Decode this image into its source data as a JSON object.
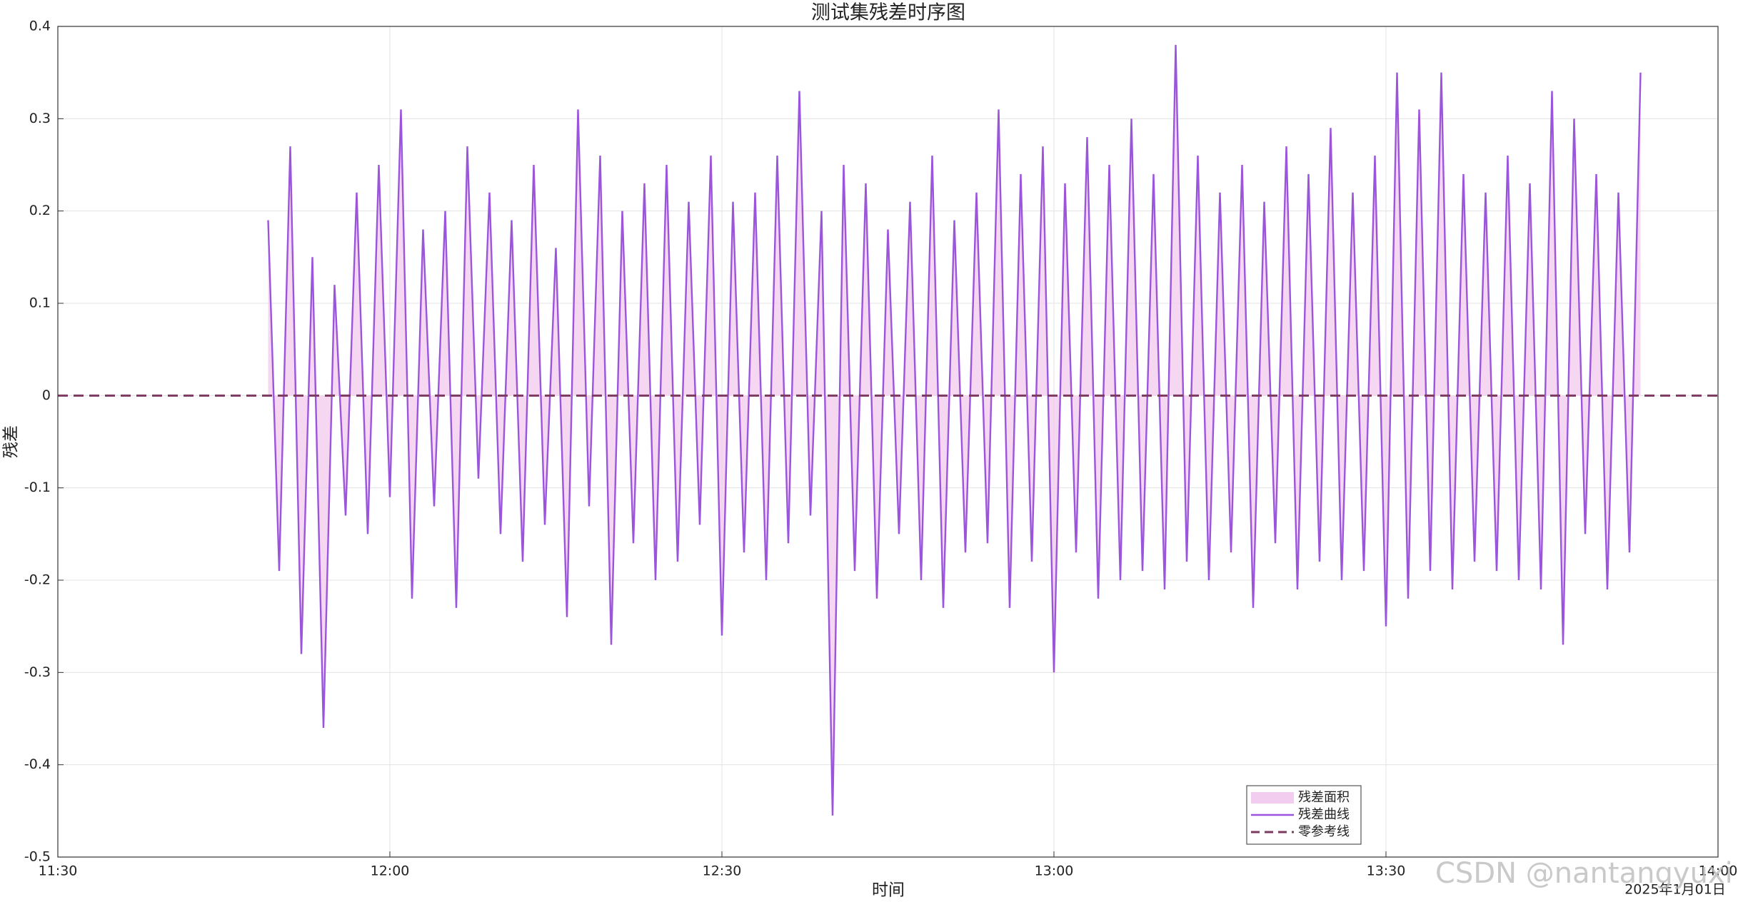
{
  "chart_data": {
    "type": "line",
    "title": "测试集残差时序图",
    "xlabel": "时间",
    "ylabel": "残差",
    "date_label": "2025年1月01日",
    "watermark": "CSDN @nantangyuxi",
    "x": [
      "11:49",
      "11:50",
      "11:51",
      "11:52",
      "11:53",
      "11:54",
      "11:55",
      "11:56",
      "11:57",
      "11:58",
      "11:59",
      "12:00",
      "12:01",
      "12:02",
      "12:03",
      "12:04",
      "12:05",
      "12:06",
      "12:07",
      "12:08",
      "12:09",
      "12:10",
      "12:11",
      "12:12",
      "12:13",
      "12:14",
      "12:15",
      "12:16",
      "12:17",
      "12:18",
      "12:19",
      "12:20",
      "12:21",
      "12:22",
      "12:23",
      "12:24",
      "12:25",
      "12:26",
      "12:27",
      "12:28",
      "12:29",
      "12:30",
      "12:31",
      "12:32",
      "12:33",
      "12:34",
      "12:35",
      "12:36",
      "12:37",
      "12:38",
      "12:39",
      "12:40",
      "12:41",
      "12:42",
      "12:43",
      "12:44",
      "12:45",
      "12:46",
      "12:47",
      "12:48",
      "12:49",
      "12:50",
      "12:51",
      "12:52",
      "12:53",
      "12:54",
      "12:55",
      "12:56",
      "12:57",
      "12:58",
      "12:59",
      "13:00",
      "13:01",
      "13:02",
      "13:03",
      "13:04",
      "13:05",
      "13:06",
      "13:07",
      "13:08",
      "13:09",
      "13:10",
      "13:11",
      "13:12",
      "13:13",
      "13:14",
      "13:15",
      "13:16",
      "13:17",
      "13:18",
      "13:19",
      "13:20",
      "13:21",
      "13:22",
      "13:23",
      "13:24",
      "13:25",
      "13:26",
      "13:27",
      "13:28",
      "13:29",
      "13:30",
      "13:31",
      "13:32",
      "13:33",
      "13:34",
      "13:35",
      "13:36",
      "13:37",
      "13:38",
      "13:39",
      "13:40",
      "13:41",
      "13:42",
      "13:43",
      "13:44",
      "13:45",
      "13:46",
      "13:47",
      "13:48",
      "13:49",
      "13:50",
      "13:51",
      "13:52",
      "13:53"
    ],
    "series": [
      {
        "name": "残差面积",
        "kind": "area",
        "color": "#f3cdef"
      },
      {
        "name": "残差曲线",
        "kind": "line",
        "color": "#9b55dc",
        "values": [
          0.19,
          -0.19,
          0.27,
          -0.28,
          0.15,
          -0.36,
          0.12,
          -0.13,
          0.22,
          -0.15,
          0.25,
          -0.11,
          0.31,
          -0.22,
          0.18,
          -0.12,
          0.2,
          -0.23,
          0.27,
          -0.09,
          0.22,
          -0.15,
          0.19,
          -0.18,
          0.25,
          -0.14,
          0.16,
          -0.24,
          0.31,
          -0.12,
          0.26,
          -0.27,
          0.2,
          -0.16,
          0.23,
          -0.2,
          0.25,
          -0.18,
          0.21,
          -0.14,
          0.26,
          -0.26,
          0.21,
          -0.17,
          0.22,
          -0.2,
          0.26,
          -0.16,
          0.33,
          -0.13,
          0.2,
          -0.455,
          0.25,
          -0.19,
          0.23,
          -0.22,
          0.18,
          -0.15,
          0.21,
          -0.2,
          0.26,
          -0.23,
          0.19,
          -0.17,
          0.22,
          -0.16,
          0.31,
          -0.23,
          0.24,
          -0.18,
          0.27,
          -0.3,
          0.23,
          -0.17,
          0.28,
          -0.22,
          0.25,
          -0.2,
          0.3,
          -0.19,
          0.24,
          -0.21,
          0.38,
          -0.18,
          0.26,
          -0.2,
          0.22,
          -0.17,
          0.25,
          -0.23,
          0.21,
          -0.16,
          0.27,
          -0.21,
          0.24,
          -0.18,
          0.29,
          -0.2,
          0.22,
          -0.19,
          0.26,
          -0.25,
          0.35,
          -0.22,
          0.31,
          -0.19,
          0.35,
          -0.21,
          0.24,
          -0.18,
          0.22,
          -0.19,
          0.26,
          -0.2,
          0.23,
          -0.21,
          0.33,
          -0.27,
          0.3,
          -0.15,
          0.24,
          -0.21,
          0.22,
          -0.17,
          0.35
        ]
      }
    ],
    "reference_lines": [
      {
        "name": "零参考线",
        "value": 0,
        "color": "#7d3a60",
        "dashed": true
      }
    ],
    "xlim": [
      "11:30",
      "14:00"
    ],
    "xticks": [
      "11:30",
      "12:00",
      "12:30",
      "13:00",
      "13:30",
      "14:00"
    ],
    "ylim": [
      -0.5,
      0.4
    ],
    "yticks": [
      -0.5,
      -0.4,
      -0.3,
      -0.2,
      -0.1,
      0,
      0.1,
      0.2,
      0.3,
      0.4
    ],
    "grid": true,
    "legend": "lower-right"
  }
}
